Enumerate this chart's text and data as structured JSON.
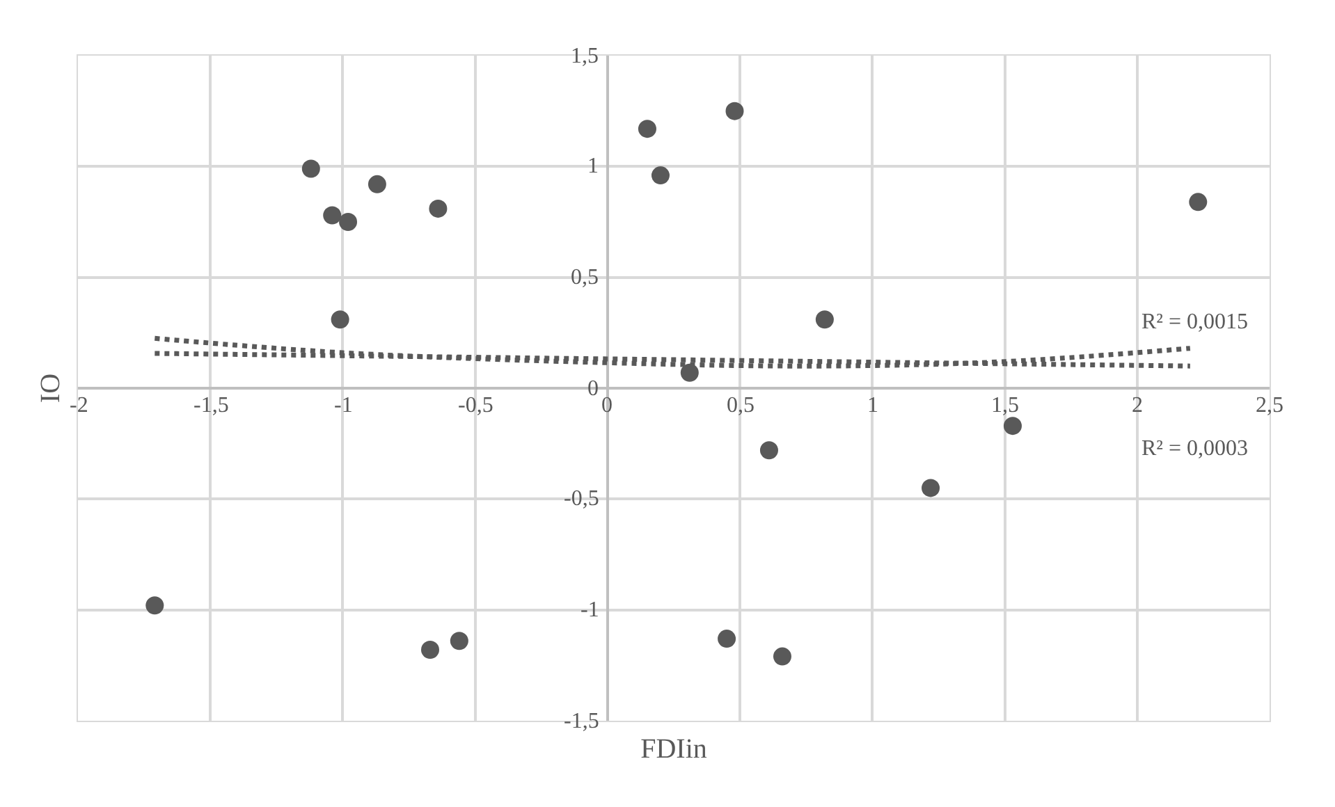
{
  "chart_data": {
    "type": "scatter",
    "xlabel": "FDIin",
    "ylabel": "IO",
    "xlim": [
      -2,
      2.5
    ],
    "ylim": [
      -1.5,
      1.5
    ],
    "xticks": [
      -2,
      {
        "value": -1.5,
        "label": "-1,5"
      },
      -1,
      {
        "value": -0.5,
        "label": "-0,5"
      },
      0,
      {
        "value": 0.5,
        "label": "0,5"
      },
      1,
      {
        "value": 1.5,
        "label": "1,5"
      },
      2,
      {
        "value": 2.5,
        "label": "2,5"
      }
    ],
    "yticks": [
      {
        "value": -1.5,
        "label": "-1,5"
      },
      -1,
      {
        "value": -0.5,
        "label": "-0,5"
      },
      0,
      {
        "value": 0.5,
        "label": "0,5"
      },
      1,
      {
        "value": 1.5,
        "label": "1,5"
      }
    ],
    "grid": true,
    "series": [
      {
        "marker": "circle",
        "color": "#595959",
        "x": [
          -1.71,
          -1.12,
          -1.04,
          -0.98,
          -0.87,
          -0.64,
          -1.01,
          -0.67,
          -0.56,
          0.15,
          0.2,
          0.48,
          0.31,
          0.82,
          0.61,
          1.22,
          1.53,
          0.45,
          0.66,
          2.23
        ],
        "values": [
          -0.98,
          0.99,
          0.78,
          0.75,
          0.92,
          0.81,
          0.31,
          -1.18,
          -1.14,
          1.17,
          0.96,
          1.25,
          0.07,
          0.31,
          -0.28,
          -0.45,
          -0.17,
          -1.13,
          -1.21,
          0.84
        ]
      },
      {
        "type": "line",
        "marker": "none",
        "line_style": "dotted",
        "color": "#595959",
        "x": [
          -1.71,
          -1.0,
          0.0,
          0.8,
          1.5,
          2.2
        ],
        "values": [
          0.225,
          0.16,
          0.115,
          0.1,
          0.12,
          0.18
        ]
      },
      {
        "type": "line",
        "marker": "none",
        "line_style": "dotted",
        "color": "#595959",
        "x": [
          -1.71,
          2.2
        ],
        "values": [
          0.157,
          0.1
        ]
      }
    ],
    "annotations": [
      "R² = 0,0015",
      "R² = 0,0003"
    ]
  }
}
